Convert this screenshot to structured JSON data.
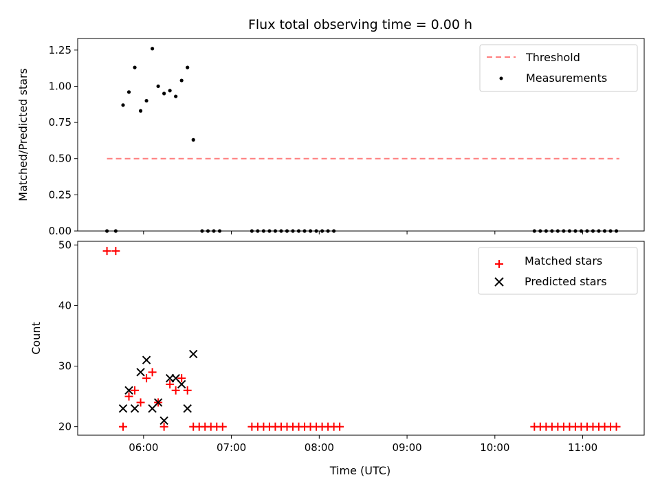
{
  "chart_data": [
    {
      "type": "scatter",
      "title": "Flux total observing time = 0.00 h",
      "xlabel": "",
      "ylabel": "Matched/Predicted stars",
      "xlim": [
        "05:15",
        "11:42"
      ],
      "ylim": [
        0,
        1.33
      ],
      "yticks": [
        0.0,
        0.25,
        0.5,
        0.75,
        1.0,
        1.25
      ],
      "ytick_labels": [
        "0.00",
        "0.25",
        "0.50",
        "0.75",
        "1.00",
        "1.25"
      ],
      "xticks": [
        "06:00",
        "07:00",
        "08:00",
        "09:00",
        "10:00",
        "11:00"
      ],
      "legend_position": "top-right",
      "grid": false,
      "threshold": {
        "name": "Threshold",
        "value": 0.5,
        "x_start": "05:35",
        "x_end": "11:25",
        "color": "#ff7f7f"
      },
      "series": [
        {
          "name": "Measurements",
          "color": "#000000",
          "points": [
            [
              "05:35",
              0.0
            ],
            [
              "05:41",
              0.0
            ],
            [
              "05:46",
              0.87
            ],
            [
              "05:50",
              0.96
            ],
            [
              "05:54",
              1.13
            ],
            [
              "05:58",
              0.83
            ],
            [
              "06:02",
              0.9
            ],
            [
              "06:06",
              1.26
            ],
            [
              "06:10",
              1.0
            ],
            [
              "06:14",
              0.95
            ],
            [
              "06:18",
              0.97
            ],
            [
              "06:22",
              0.93
            ],
            [
              "06:26",
              1.04
            ],
            [
              "06:30",
              1.13
            ],
            [
              "06:34",
              0.63
            ],
            [
              "06:40",
              0.0
            ],
            [
              "06:44",
              0.0
            ],
            [
              "06:48",
              0.0
            ],
            [
              "06:52",
              0.0
            ],
            [
              "07:14",
              0.0
            ],
            [
              "07:18",
              0.0
            ],
            [
              "07:22",
              0.0
            ],
            [
              "07:26",
              0.0
            ],
            [
              "07:30",
              0.0
            ],
            [
              "07:34",
              0.0
            ],
            [
              "07:38",
              0.0
            ],
            [
              "07:42",
              0.0
            ],
            [
              "07:46",
              0.0
            ],
            [
              "07:50",
              0.0
            ],
            [
              "07:54",
              0.0
            ],
            [
              "07:58",
              0.0
            ],
            [
              "08:02",
              0.0
            ],
            [
              "08:06",
              0.0
            ],
            [
              "08:10",
              0.0
            ],
            [
              "10:27",
              0.0
            ],
            [
              "10:31",
              0.0
            ],
            [
              "10:35",
              0.0
            ],
            [
              "10:39",
              0.0
            ],
            [
              "10:43",
              0.0
            ],
            [
              "10:47",
              0.0
            ],
            [
              "10:51",
              0.0
            ],
            [
              "10:55",
              0.0
            ],
            [
              "10:59",
              0.0
            ],
            [
              "11:03",
              0.0
            ],
            [
              "11:07",
              0.0
            ],
            [
              "11:11",
              0.0
            ],
            [
              "11:15",
              0.0
            ],
            [
              "11:19",
              0.0
            ],
            [
              "11:23",
              0.0
            ]
          ]
        }
      ]
    },
    {
      "type": "scatter",
      "title": "",
      "xlabel": "Time (UTC)",
      "ylabel": "Count",
      "xlim": [
        "05:15",
        "11:42"
      ],
      "ylim": [
        18.6,
        50.6
      ],
      "yticks": [
        20,
        30,
        40,
        50
      ],
      "ytick_labels": [
        "20",
        "30",
        "40",
        "50"
      ],
      "xticks": [
        "06:00",
        "07:00",
        "08:00",
        "09:00",
        "10:00",
        "11:00"
      ],
      "xtick_labels": [
        "06:00",
        "07:00",
        "08:00",
        "09:00",
        "10:00",
        "11:00"
      ],
      "legend_position": "top-right",
      "grid": false,
      "series": [
        {
          "name": "Matched stars",
          "color": "#ff0000",
          "marker": "plus",
          "points": [
            [
              "05:35",
              49
            ],
            [
              "05:41",
              49
            ],
            [
              "05:46",
              20
            ],
            [
              "05:50",
              25
            ],
            [
              "05:54",
              26
            ],
            [
              "05:58",
              24
            ],
            [
              "06:02",
              28
            ],
            [
              "06:06",
              29
            ],
            [
              "06:10",
              24
            ],
            [
              "06:14",
              20
            ],
            [
              "06:18",
              27
            ],
            [
              "06:22",
              26
            ],
            [
              "06:26",
              28
            ],
            [
              "06:30",
              26
            ],
            [
              "06:34",
              20
            ],
            [
              "06:38",
              20
            ],
            [
              "06:42",
              20
            ],
            [
              "06:46",
              20
            ],
            [
              "06:50",
              20
            ],
            [
              "06:54",
              20
            ],
            [
              "07:14",
              20
            ],
            [
              "07:18",
              20
            ],
            [
              "07:22",
              20
            ],
            [
              "07:26",
              20
            ],
            [
              "07:30",
              20
            ],
            [
              "07:34",
              20
            ],
            [
              "07:38",
              20
            ],
            [
              "07:42",
              20
            ],
            [
              "07:46",
              20
            ],
            [
              "07:50",
              20
            ],
            [
              "07:54",
              20
            ],
            [
              "07:58",
              20
            ],
            [
              "08:02",
              20
            ],
            [
              "08:06",
              20
            ],
            [
              "08:10",
              20
            ],
            [
              "08:14",
              20
            ],
            [
              "10:27",
              20
            ],
            [
              "10:31",
              20
            ],
            [
              "10:35",
              20
            ],
            [
              "10:39",
              20
            ],
            [
              "10:43",
              20
            ],
            [
              "10:47",
              20
            ],
            [
              "10:51",
              20
            ],
            [
              "10:55",
              20
            ],
            [
              "10:59",
              20
            ],
            [
              "11:03",
              20
            ],
            [
              "11:07",
              20
            ],
            [
              "11:11",
              20
            ],
            [
              "11:15",
              20
            ],
            [
              "11:19",
              20
            ],
            [
              "11:23",
              20
            ]
          ]
        },
        {
          "name": "Predicted stars",
          "color": "#000000",
          "marker": "x",
          "points": [
            [
              "05:46",
              23
            ],
            [
              "05:50",
              26
            ],
            [
              "05:54",
              23
            ],
            [
              "05:58",
              29
            ],
            [
              "06:02",
              31
            ],
            [
              "06:06",
              23
            ],
            [
              "06:10",
              24
            ],
            [
              "06:14",
              21
            ],
            [
              "06:18",
              28
            ],
            [
              "06:22",
              28
            ],
            [
              "06:26",
              27
            ],
            [
              "06:30",
              23
            ],
            [
              "06:34",
              32
            ]
          ]
        }
      ]
    }
  ]
}
